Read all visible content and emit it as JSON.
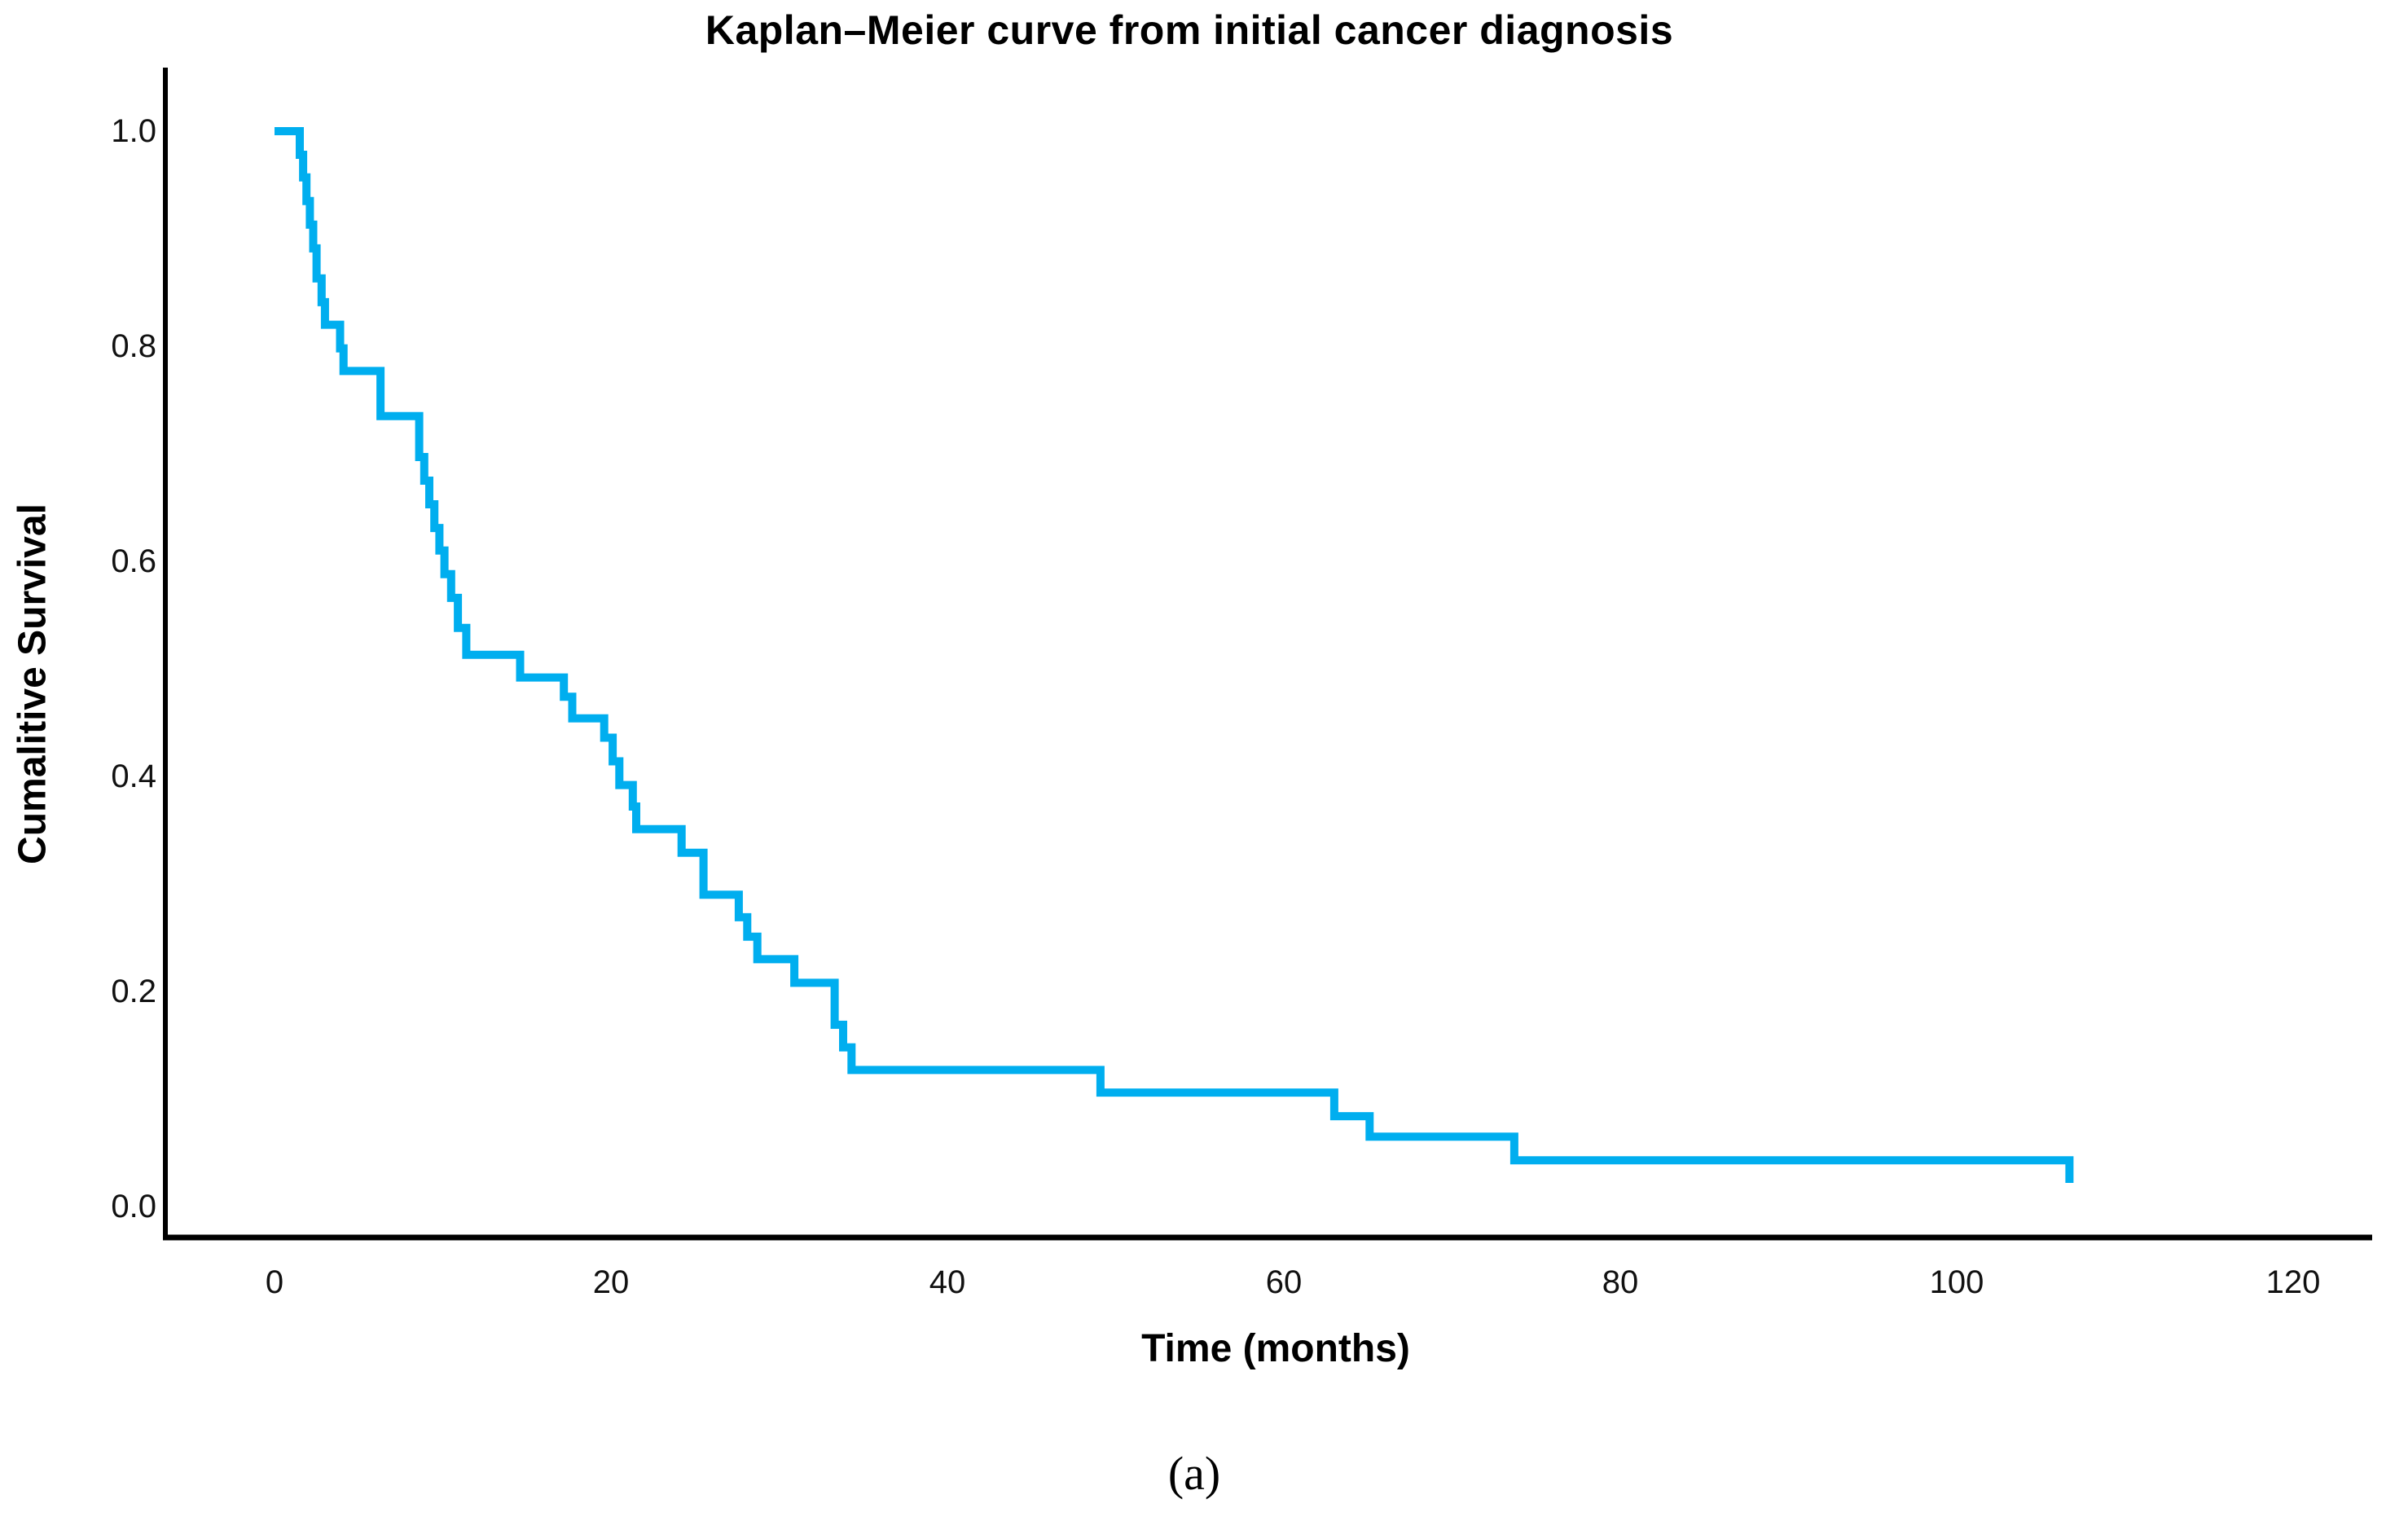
{
  "title": "Kaplan–Meier curve from initial cancer diagnosis",
  "caption": "(a)",
  "x_axis": {
    "label": "Time (months)",
    "tick_labels": [
      "0",
      "20",
      "40",
      "60",
      "80",
      "100",
      "120"
    ],
    "tick_values": [
      0,
      20,
      40,
      60,
      80,
      100,
      120
    ]
  },
  "y_axis": {
    "label": "Cumalitive Survival",
    "tick_labels": [
      "1.0",
      "0.8",
      "0.6",
      "0.4",
      "0.2",
      "0.0"
    ],
    "tick_values": [
      1.0,
      0.8,
      0.6,
      0.4,
      0.2,
      0.0
    ]
  },
  "colors": {
    "curve": "#00AEEF",
    "axis": "#000000",
    "text": "#000000",
    "background": "#ffffff"
  },
  "chart_data": {
    "type": "line",
    "subtype": "kaplan-meier-step",
    "title": "Kaplan–Meier curve from initial cancer diagnosis",
    "xlabel": "Time (months)",
    "ylabel": "Cumalitive Survival",
    "xlim": [
      -6.5,
      127
    ],
    "ylim": [
      -0.03,
      1.06
    ],
    "grid": false,
    "legend_position": "none",
    "series": [
      {
        "name": "Cumulative survival",
        "color": "#00AEEF",
        "step": true,
        "points": [
          [
            0,
            1.0
          ],
          [
            1.5,
            0.978
          ],
          [
            1.7,
            0.957
          ],
          [
            1.9,
            0.935
          ],
          [
            2.1,
            0.913
          ],
          [
            2.3,
            0.891
          ],
          [
            2.5,
            0.863
          ],
          [
            2.8,
            0.841
          ],
          [
            3.0,
            0.82
          ],
          [
            3.9,
            0.798
          ],
          [
            4.1,
            0.777
          ],
          [
            6.3,
            0.735
          ],
          [
            8.6,
            0.697
          ],
          [
            8.9,
            0.675
          ],
          [
            9.2,
            0.653
          ],
          [
            9.5,
            0.631
          ],
          [
            9.8,
            0.61
          ],
          [
            10.1,
            0.588
          ],
          [
            10.5,
            0.566
          ],
          [
            10.9,
            0.538
          ],
          [
            11.4,
            0.513
          ],
          [
            14.6,
            0.492
          ],
          [
            17.2,
            0.474
          ],
          [
            17.7,
            0.454
          ],
          [
            19.6,
            0.436
          ],
          [
            20.1,
            0.414
          ],
          [
            20.5,
            0.392
          ],
          [
            21.3,
            0.372
          ],
          [
            21.5,
            0.351
          ],
          [
            24.2,
            0.329
          ],
          [
            25.5,
            0.29
          ],
          [
            27.6,
            0.269
          ],
          [
            28.1,
            0.251
          ],
          [
            28.7,
            0.23
          ],
          [
            30.9,
            0.208
          ],
          [
            33.3,
            0.169
          ],
          [
            33.8,
            0.148
          ],
          [
            34.3,
            0.127
          ],
          [
            49.1,
            0.106
          ],
          [
            63.0,
            0.084
          ],
          [
            65.1,
            0.065
          ],
          [
            73.7,
            0.043
          ],
          [
            106.7,
            0.022
          ]
        ]
      }
    ]
  }
}
